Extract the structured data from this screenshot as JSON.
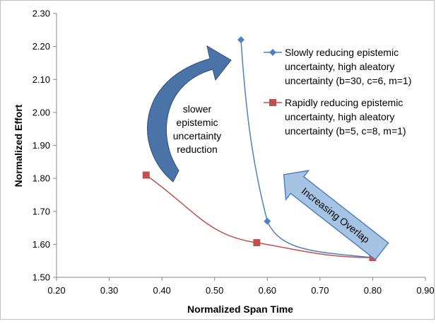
{
  "chart_data": {
    "type": "scatter",
    "xlabel": "Normalized Span Time",
    "ylabel": "Normalized Effort",
    "xlim": [
      0.2,
      0.9
    ],
    "ylim": [
      1.5,
      2.3
    ],
    "xticks": [
      "0.20",
      "0.30",
      "0.40",
      "0.50",
      "0.60",
      "0.70",
      "0.80",
      "0.90"
    ],
    "yticks": [
      "1.50",
      "1.60",
      "1.70",
      "1.80",
      "1.90",
      "2.00",
      "2.10",
      "2.20",
      "2.30"
    ],
    "grid": false,
    "legend_position": "right",
    "series": [
      {
        "name": "Slowly reducing epistemic uncertainty, high aleatory uncertainty (b=30, c=6, m=1)",
        "legend_lines": [
          "Slowly reducing epistemic",
          "uncertainty, high aleatory",
          "uncertainty (b=30, c=6, m=1)"
        ],
        "color": "#4f81bd",
        "marker": "diamond",
        "x": [
          0.55,
          0.6,
          0.8
        ],
        "y": [
          2.22,
          1.67,
          1.56
        ]
      },
      {
        "name": "Rapidly reducing epistemic uncertainty, high aleatory uncertainty (b=5, c=8, m=1)",
        "legend_lines": [
          "Rapidly reducing epistemic",
          "uncertainty, high aleatory",
          "uncertainty (b=5, c=8, m=1)"
        ],
        "color": "#c0504d",
        "marker": "square",
        "x": [
          0.37,
          0.58,
          0.8
        ],
        "y": [
          1.81,
          1.605,
          1.56
        ]
      }
    ],
    "annotations": {
      "curved_arrow_text": [
        "slower",
        "epistemic",
        "uncertainty",
        "reduction"
      ],
      "overlap_arrow_text": "Increasing Overlap"
    }
  }
}
